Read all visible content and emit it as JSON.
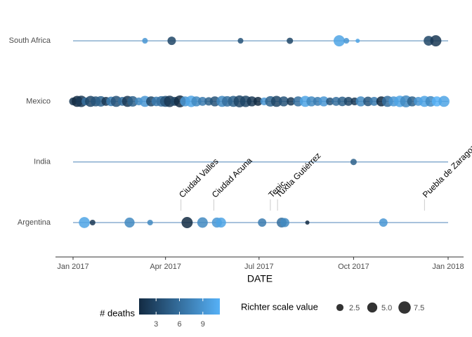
{
  "chart_data": {
    "type": "bubble-timeline",
    "xlabel": "DATE",
    "xlim": [
      0,
      365
    ],
    "xticks": [
      {
        "value": 0,
        "label": "Jan 2017"
      },
      {
        "value": 90,
        "label": "Apr 2017"
      },
      {
        "value": 181,
        "label": "Jul 2017"
      },
      {
        "value": 273,
        "label": "Oct 2017"
      },
      {
        "value": 365,
        "label": "Jan 2018"
      }
    ],
    "categories": [
      "Argentina",
      "India",
      "Mexico",
      "South Africa"
    ],
    "line_color": "#4f86b8",
    "color_title": "# deaths",
    "color_low": "#132B43",
    "color_high": "#56B1F7",
    "color_lim": [
      1,
      11
    ],
    "color_ticks": [
      3,
      6,
      9
    ],
    "size_title": "Richter scale value",
    "size_ticks": [
      2.5,
      {
        "value": 5,
        "label": "5.0"
      },
      7.5
    ],
    "series": [
      {
        "name": "Argentina",
        "x": [
          11,
          19,
          55,
          75,
          111,
          126,
          140,
          144,
          184,
          203,
          206,
          228,
          302
        ],
        "deaths": [
          10,
          2,
          8,
          8,
          1,
          8,
          9,
          10,
          7,
          6,
          8,
          1,
          9
        ],
        "magnitude": [
          6,
          1.6,
          5,
          1.6,
          6.2,
          5.5,
          5,
          5,
          3.5,
          4.8,
          4.2,
          0.9,
          3.5
        ]
      },
      {
        "name": "India",
        "x": [
          273
        ],
        "deaths": [
          5
        ],
        "magnitude": [
          2
        ]
      },
      {
        "name": "Mexico",
        "x": [
          0,
          4,
          8,
          12,
          17,
          22,
          27,
          32,
          37,
          42,
          48,
          53,
          58,
          64,
          70,
          76,
          81,
          86,
          90,
          94,
          99,
          104,
          109,
          115,
          120,
          126,
          132,
          138,
          145,
          150,
          156,
          162,
          168,
          174,
          180,
          186,
          192,
          198,
          205,
          212,
          219,
          226,
          232,
          238,
          244,
          250,
          256,
          262,
          268,
          274,
          280,
          287,
          293,
          300,
          306,
          312,
          318,
          324,
          330,
          336,
          342,
          348,
          354,
          361
        ],
        "deaths": [
          2,
          1,
          2,
          6,
          3,
          4,
          5,
          2,
          7,
          4,
          6,
          2,
          5,
          8,
          9,
          3,
          7,
          6,
          4,
          2,
          3,
          1,
          9,
          10,
          8,
          7,
          5,
          4,
          8,
          6,
          5,
          3,
          3,
          2,
          1,
          9,
          5,
          3,
          4,
          2,
          6,
          10,
          8,
          7,
          9,
          4,
          6,
          5,
          3,
          2,
          8,
          4,
          7,
          1,
          6,
          9,
          10,
          8,
          5,
          9,
          10,
          8,
          11,
          10
        ],
        "magnitude": [
          3,
          6,
          6.5,
          3,
          6,
          5,
          5.5,
          4,
          4.5,
          6,
          4,
          6,
          5.5,
          3,
          6,
          5,
          4.5,
          5.5,
          6,
          6.5,
          4,
          7,
          5,
          6.5,
          5,
          4,
          3.5,
          5,
          6,
          5.5,
          6,
          7,
          6.5,
          5,
          4,
          3,
          5.5,
          6,
          5,
          3.5,
          5,
          6,
          5,
          4,
          5,
          3,
          4,
          4.5,
          4,
          3,
          5,
          4.5,
          4,
          5,
          6,
          5,
          6.5,
          7,
          5,
          4,
          6,
          5.5,
          5,
          6
        ]
      },
      {
        "name": "South Africa",
        "x": [
          70,
          96,
          163,
          211,
          259,
          266,
          277,
          346,
          353
        ],
        "deaths": [
          9,
          3,
          4,
          3,
          10,
          9,
          10,
          3,
          2
        ],
        "magnitude": [
          1.6,
          3.5,
          1.6,
          2,
          6.2,
          1.6,
          0.9,
          4.8,
          6.2
        ]
      }
    ],
    "annotations": [
      {
        "label": "Ciudad Valles",
        "x": 105
      },
      {
        "label": "Ciudad Acuna",
        "x": 137
      },
      {
        "label": "Tepic",
        "x": 192
      },
      {
        "label": "Tuxtla Gutiérrez",
        "x": 199
      },
      {
        "label": "Puebla de Zaragoza",
        "x": 342
      }
    ]
  }
}
